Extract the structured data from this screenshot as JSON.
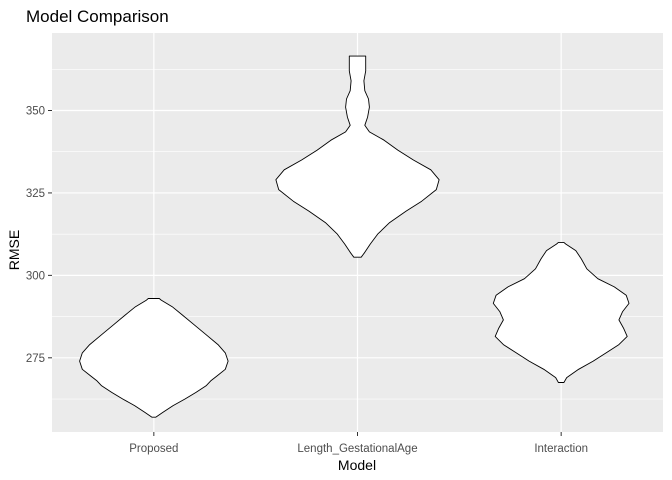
{
  "chart_data": {
    "type": "violin",
    "title": "Model Comparison",
    "xlabel": "Model",
    "ylabel": "RMSE",
    "categories": [
      "Proposed",
      "Length_GestationalAge",
      "Interaction"
    ],
    "ylim": [
      252.5,
      373.5
    ],
    "yticks": [
      275,
      300,
      325,
      350
    ],
    "grid": true,
    "legend": "none",
    "colors": {
      "panel": "#ebebeb",
      "grid_major": "#ffffff",
      "violin_fill": "#ffffff",
      "violin_outline": "#000000"
    },
    "violins": [
      {
        "category": "Proposed",
        "min": 257,
        "max": 293,
        "profile": [
          [
            257.0,
            0.02
          ],
          [
            258.5,
            0.1
          ],
          [
            260.5,
            0.21
          ],
          [
            262.5,
            0.34
          ],
          [
            264.5,
            0.46
          ],
          [
            266.5,
            0.57
          ],
          [
            268.0,
            0.62
          ],
          [
            269.5,
            0.69
          ],
          [
            271.5,
            0.78
          ],
          [
            274.0,
            0.81
          ],
          [
            276.5,
            0.78
          ],
          [
            279.0,
            0.7
          ],
          [
            282.0,
            0.57
          ],
          [
            285.0,
            0.44
          ],
          [
            288.0,
            0.31
          ],
          [
            290.5,
            0.2
          ],
          [
            292.5,
            0.08
          ],
          [
            293.0,
            0.06
          ]
        ]
      },
      {
        "category": "Length_GestationalAge",
        "min": 305.5,
        "max": 366.5,
        "profile": [
          [
            305.5,
            0.04
          ],
          [
            307.0,
            0.08
          ],
          [
            309.5,
            0.14
          ],
          [
            312.5,
            0.22
          ],
          [
            316.0,
            0.35
          ],
          [
            319.5,
            0.53
          ],
          [
            322.5,
            0.7
          ],
          [
            326.0,
            0.86
          ],
          [
            329.0,
            0.89
          ],
          [
            332.0,
            0.8
          ],
          [
            335.0,
            0.61
          ],
          [
            338.0,
            0.44
          ],
          [
            341.0,
            0.29
          ],
          [
            343.5,
            0.13
          ],
          [
            345.5,
            0.08
          ],
          [
            348.0,
            0.11
          ],
          [
            351.0,
            0.13
          ],
          [
            353.5,
            0.12
          ],
          [
            356.0,
            0.08
          ],
          [
            359.0,
            0.07
          ],
          [
            362.0,
            0.09
          ],
          [
            364.5,
            0.09
          ],
          [
            366.5,
            0.09
          ]
        ]
      },
      {
        "category": "Interaction",
        "min": 267.5,
        "max": 310,
        "profile": [
          [
            267.5,
            0.03
          ],
          [
            269.0,
            0.06
          ],
          [
            271.5,
            0.19
          ],
          [
            274.0,
            0.35
          ],
          [
            276.5,
            0.49
          ],
          [
            279.0,
            0.63
          ],
          [
            281.5,
            0.72
          ],
          [
            284.0,
            0.68
          ],
          [
            286.5,
            0.63
          ],
          [
            289.0,
            0.67
          ],
          [
            291.5,
            0.74
          ],
          [
            294.0,
            0.71
          ],
          [
            296.5,
            0.58
          ],
          [
            299.0,
            0.4
          ],
          [
            302.0,
            0.28
          ],
          [
            305.0,
            0.22
          ],
          [
            307.5,
            0.16
          ],
          [
            309.5,
            0.05
          ],
          [
            310.0,
            0.03
          ]
        ]
      }
    ]
  }
}
